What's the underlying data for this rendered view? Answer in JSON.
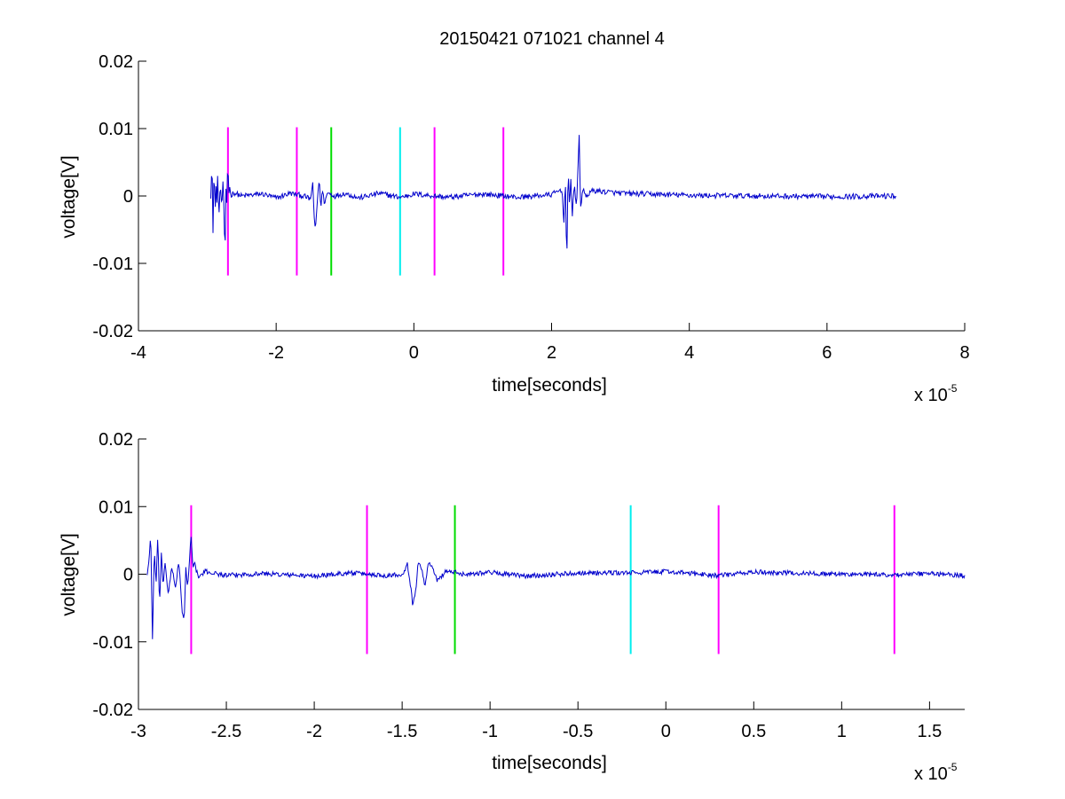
{
  "figure": {
    "title": "20150421 071021 channel 4"
  },
  "chart_data": [
    {
      "type": "line",
      "xlabel": "time[seconds]",
      "ylabel": "voltage[V]",
      "x_exponent_base": "x 10",
      "x_exponent_power": "-5",
      "xlim": [
        -4,
        8
      ],
      "ylim": [
        -0.02,
        0.02
      ],
      "xticks": [
        -4,
        -2,
        0,
        2,
        4,
        6,
        8
      ],
      "xtick_labels": [
        "-4",
        "-2",
        "0",
        "2",
        "4",
        "6",
        "8"
      ],
      "yticks": [
        -0.02,
        -0.01,
        0,
        0.01,
        0.02
      ],
      "ytick_labels": [
        "-0.02",
        "-0.01",
        "0",
        "0.01",
        "0.02"
      ],
      "grid": false,
      "signal_color": "#0000cc",
      "signal_points": [
        [
          -2.95,
          0
        ],
        [
          -2.93,
          0.006
        ],
        [
          -2.92,
          -0.0105
        ],
        [
          -2.91,
          0.005
        ],
        [
          -2.9,
          -0.003
        ],
        [
          -2.89,
          0.006
        ],
        [
          -2.88,
          -0.006
        ],
        [
          -2.87,
          0.004
        ],
        [
          -2.86,
          -0.002
        ],
        [
          -2.85,
          0.003
        ],
        [
          -2.83,
          -0.003
        ],
        [
          -2.81,
          0.002
        ],
        [
          -2.79,
          -0.002
        ],
        [
          -2.77,
          0.003
        ],
        [
          -2.75,
          -0.006
        ],
        [
          -2.74,
          -0.007
        ],
        [
          -2.73,
          0.001
        ],
        [
          -2.72,
          -0.002
        ],
        [
          -2.7,
          0.006
        ],
        [
          -2.69,
          -0.001
        ],
        [
          -2.68,
          0.002
        ],
        [
          -2.66,
          0
        ],
        [
          -2.62,
          0.0005
        ],
        [
          -2.5,
          0
        ],
        [
          -2.2,
          0.0003
        ],
        [
          -2.0,
          -0.0003
        ],
        [
          -1.8,
          0.0004
        ],
        [
          -1.6,
          0
        ],
        [
          -1.5,
          -0.0005
        ],
        [
          -1.47,
          0.002
        ],
        [
          -1.45,
          -0.003
        ],
        [
          -1.43,
          -0.005
        ],
        [
          -1.41,
          -0.002
        ],
        [
          -1.39,
          0.001
        ],
        [
          -1.37,
          0.002
        ],
        [
          -1.35,
          -0.002
        ],
        [
          -1.33,
          0.001
        ],
        [
          -1.3,
          -0.001
        ],
        [
          -1.25,
          0.0005
        ],
        [
          -1.15,
          0
        ],
        [
          -1.0,
          0.0004
        ],
        [
          -0.8,
          -0.0003
        ],
        [
          -0.5,
          0.0004
        ],
        [
          -0.2,
          -0.0002
        ],
        [
          0,
          0.0003
        ],
        [
          0.5,
          -0.0002
        ],
        [
          1.0,
          0.0003
        ],
        [
          1.5,
          -0.0002
        ],
        [
          2.0,
          0.0002
        ],
        [
          2.15,
          0.001
        ],
        [
          2.18,
          -0.004
        ],
        [
          2.2,
          0.003
        ],
        [
          2.22,
          -0.0108
        ],
        [
          2.24,
          0.004
        ],
        [
          2.26,
          -0.002
        ],
        [
          2.28,
          0.003
        ],
        [
          2.3,
          -0.003
        ],
        [
          2.33,
          0.002
        ],
        [
          2.36,
          -0.002
        ],
        [
          2.38,
          0.003
        ],
        [
          2.4,
          0.0093
        ],
        [
          2.42,
          -0.002
        ],
        [
          2.45,
          0.001
        ],
        [
          2.5,
          0
        ],
        [
          2.6,
          0.0008
        ],
        [
          3.0,
          0.0004
        ],
        [
          4.0,
          0.0001
        ],
        [
          5.0,
          0
        ],
        [
          6.0,
          -0.0001
        ],
        [
          7.0,
          0
        ]
      ],
      "noise_amplitude": 0.0004,
      "markers": [
        {
          "x": -2.7,
          "color": "#ff00ff"
        },
        {
          "x": -1.7,
          "color": "#ff00ff"
        },
        {
          "x": -1.2,
          "color": "#00dd00"
        },
        {
          "x": -0.2,
          "color": "#00eeee"
        },
        {
          "x": 0.3,
          "color": "#ff00ff"
        },
        {
          "x": 1.3,
          "color": "#ff00ff"
        }
      ],
      "marker_range": [
        -0.0118,
        0.0102
      ]
    },
    {
      "type": "line",
      "xlabel": "time[seconds]",
      "ylabel": "voltage[V]",
      "x_exponent_base": "x 10",
      "x_exponent_power": "-5",
      "xlim": [
        -3.0,
        1.7
      ],
      "ylim": [
        -0.02,
        0.02
      ],
      "xticks": [
        -3,
        -2.5,
        -2,
        -1.5,
        -1,
        -0.5,
        0,
        0.5,
        1,
        1.5
      ],
      "xtick_labels": [
        "-3",
        "-2.5",
        "-2",
        "-1.5",
        "-1",
        "-0.5",
        "0",
        "0.5",
        "1",
        "1.5"
      ],
      "yticks": [
        -0.02,
        -0.01,
        0,
        0.01,
        0.02
      ],
      "ytick_labels": [
        "-0.02",
        "-0.01",
        "0",
        "0.01",
        "0.02"
      ],
      "grid": false,
      "signal_color": "#0000cc",
      "signal_points": [
        [
          -2.95,
          0
        ],
        [
          -2.94,
          0.002
        ],
        [
          -2.93,
          0.006
        ],
        [
          -2.92,
          -0.0102
        ],
        [
          -2.91,
          0.004
        ],
        [
          -2.9,
          -0.002
        ],
        [
          -2.89,
          0.006
        ],
        [
          -2.88,
          -0.005
        ],
        [
          -2.87,
          0.003
        ],
        [
          -2.86,
          -0.002
        ],
        [
          -2.85,
          0.002
        ],
        [
          -2.83,
          -0.003
        ],
        [
          -2.81,
          0.001
        ],
        [
          -2.79,
          -0.002
        ],
        [
          -2.77,
          0.002
        ],
        [
          -2.75,
          -0.006
        ],
        [
          -2.74,
          -0.007
        ],
        [
          -2.73,
          0.001
        ],
        [
          -2.72,
          -0.002
        ],
        [
          -2.7,
          0.006
        ],
        [
          -2.69,
          0.001
        ],
        [
          -2.68,
          0.0015
        ],
        [
          -2.66,
          -0.0005
        ],
        [
          -2.62,
          0.0004
        ],
        [
          -2.5,
          -0.0002
        ],
        [
          -2.3,
          0.0001
        ],
        [
          -2.0,
          -0.0003
        ],
        [
          -1.8,
          0.0002
        ],
        [
          -1.6,
          -0.0002
        ],
        [
          -1.5,
          0
        ],
        [
          -1.47,
          0.0015
        ],
        [
          -1.45,
          -0.002
        ],
        [
          -1.44,
          -0.0048
        ],
        [
          -1.42,
          -0.002
        ],
        [
          -1.41,
          0.002
        ],
        [
          -1.39,
          0.001
        ],
        [
          -1.37,
          -0.002
        ],
        [
          -1.35,
          0.002
        ],
        [
          -1.33,
          0.001
        ],
        [
          -1.3,
          -0.001
        ],
        [
          -1.25,
          0.0005
        ],
        [
          -1.15,
          0
        ],
        [
          -1.0,
          0.0003
        ],
        [
          -0.8,
          -0.0003
        ],
        [
          -0.5,
          0.0002
        ],
        [
          -0.2,
          0.0002
        ],
        [
          0,
          0.0004
        ],
        [
          0.3,
          -0.0002
        ],
        [
          0.5,
          0.0003
        ],
        [
          1.0,
          0
        ],
        [
          1.3,
          -0.0001
        ],
        [
          1.5,
          0.0001
        ],
        [
          1.7,
          -0.0002
        ]
      ],
      "noise_amplitude": 0.00035,
      "markers": [
        {
          "x": -2.7,
          "color": "#ff00ff"
        },
        {
          "x": -1.7,
          "color": "#ff00ff"
        },
        {
          "x": -1.2,
          "color": "#00dd00"
        },
        {
          "x": -0.2,
          "color": "#00eeee"
        },
        {
          "x": 0.3,
          "color": "#ff00ff"
        },
        {
          "x": 1.3,
          "color": "#ff00ff"
        }
      ],
      "marker_range": [
        -0.0118,
        0.0102
      ]
    }
  ]
}
